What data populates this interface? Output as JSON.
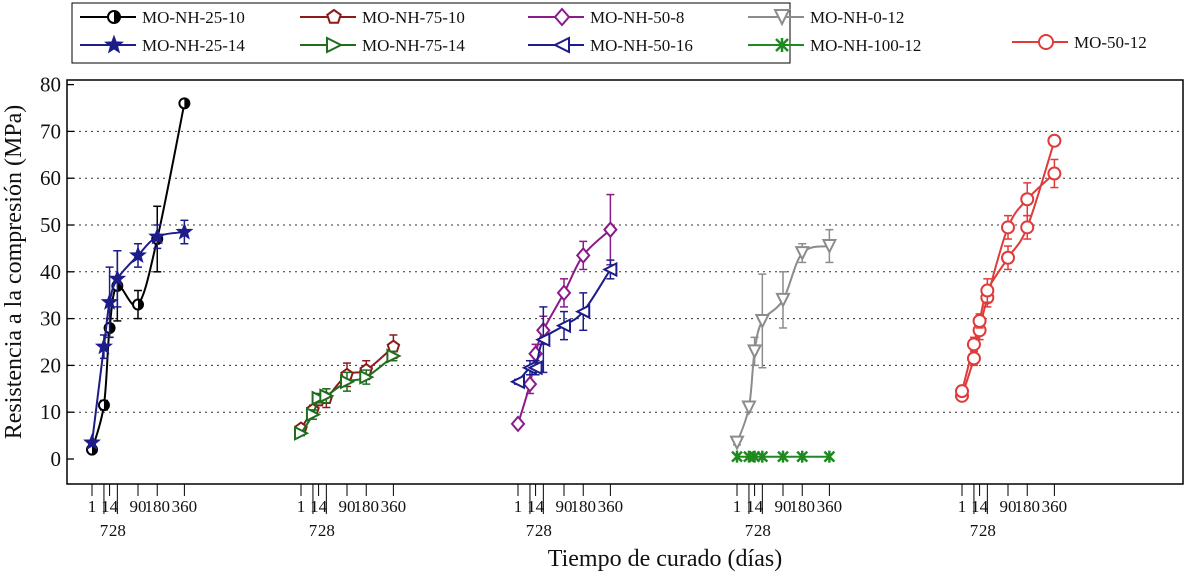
{
  "chart_data": {
    "type": "line",
    "xlabel": "Tiempo de curado (días)",
    "ylabel": "Resistencia a la compresión (MPa)",
    "ylim": [
      0,
      80
    ],
    "yticks": [
      0,
      10,
      20,
      30,
      40,
      50,
      60,
      70,
      80
    ],
    "grid": "horizontal dotted",
    "legend_position": "top",
    "x_tick_labels_upper": [
      "1",
      "14",
      "90",
      "180",
      "360"
    ],
    "x_tick_labels_lower": [
      "7",
      "28"
    ],
    "error_bars": true,
    "groups": [
      {
        "series": [
          {
            "name": "MO-NH-25-10",
            "color": "#000000",
            "marker": "circle-half",
            "x": [
              1,
              7,
              14,
              28,
              90,
              180,
              360
            ],
            "y": [
              2,
              11.5,
              28,
              37,
              33,
              47,
              76
            ],
            "err": [
              0.5,
              1,
              2,
              7.5,
              3,
              7,
              0.5
            ]
          },
          {
            "name": "MO-NH-25-14",
            "color": "#1c1c8a",
            "marker": "star",
            "x": [
              1,
              7,
              14,
              28,
              90,
              180,
              360
            ],
            "y": [
              3.5,
              24,
              33.5,
              38.5,
              43.5,
              47.5,
              48.5
            ],
            "err": [
              0.5,
              2.5,
              7.5,
              6,
              2.5,
              2.5,
              2.5
            ]
          }
        ]
      },
      {
        "series": [
          {
            "name": "MO-NH-75-10",
            "color": "#8b1a1a",
            "marker": "pentagon",
            "x": [
              1,
              7,
              14,
              28,
              90,
              180,
              360
            ],
            "y": [
              6.5,
              10.5,
              12.5,
              13,
              18,
              19,
              24
            ],
            "err": [
              0.5,
              1,
              1,
              2,
              2.5,
              2,
              2.5
            ]
          },
          {
            "name": "MO-NH-75-14",
            "color": "#1e6e1e",
            "marker": "triangle-right",
            "x": [
              1,
              7,
              14,
              28,
              90,
              180,
              360
            ],
            "y": [
              5.5,
              9.5,
              13,
              13.5,
              16.5,
              17.5,
              22
            ],
            "err": [
              0.5,
              1,
              1,
              1.5,
              2,
              1.5,
              1
            ]
          }
        ]
      },
      {
        "series": [
          {
            "name": "MO-NH-50-8",
            "color": "#8b1a8b",
            "marker": "diamond",
            "x": [
              1,
              7,
              14,
              28,
              90,
              180,
              360
            ],
            "y": [
              7.5,
              16,
              22.5,
              27.5,
              35.5,
              43.5,
              49
            ],
            "err": [
              0.5,
              2,
              2,
              3,
              3,
              3,
              7.5
            ]
          },
          {
            "name": "MO-NH-50-16",
            "color": "#1c1c8a",
            "marker": "triangle-left",
            "x": [
              1,
              7,
              14,
              28,
              90,
              180,
              360
            ],
            "y": [
              16.5,
              19.5,
              19.5,
              25.5,
              28.5,
              31.5,
              40.5
            ],
            "err": [
              0.5,
              1.5,
              1.5,
              7,
              3,
              4,
              2
            ]
          }
        ]
      },
      {
        "series": [
          {
            "name": "MO-NH-0-12",
            "color": "#8c8c8c",
            "marker": "triangle-down",
            "x": [
              1,
              7,
              14,
              28,
              90,
              180,
              360
            ],
            "y": [
              3.5,
              11,
              23,
              29.5,
              34,
              44,
              45.5
            ],
            "err": [
              0.5,
              1,
              3,
              10,
              6,
              2,
              3.5
            ]
          },
          {
            "name": "MO-NH-100-12",
            "color": "#1f8a1f",
            "marker": "x-star",
            "x": [
              1,
              7,
              14,
              28,
              90,
              180,
              360
            ],
            "y": [
              0.5,
              0.5,
              0.5,
              0.5,
              0.5,
              0.5,
              0.5
            ],
            "err": [
              0,
              0,
              0,
              0,
              0,
              0,
              0
            ]
          }
        ]
      },
      {
        "series": [
          {
            "name": "MO-50-12",
            "color": "#e03b3b",
            "marker": "circle",
            "x": [
              1,
              1,
              7,
              7,
              14,
              14,
              28,
              28,
              90,
              90,
              180,
              180,
              360,
              360
            ],
            "y": [
              13.5,
              14.5,
              21.5,
              24.5,
              27.5,
              29.5,
              34.5,
              36,
              43,
              49.5,
              49.5,
              55.5,
              61,
              68
            ],
            "err": [
              1,
              1,
              1.5,
              1.5,
              2,
              1.5,
              2,
              2.5,
              2.5,
              2.5,
              2.5,
              3.5,
              3,
              1
            ],
            "lines": [
              {
                "points": [
                  [
                    1,
                    13.5
                  ],
                  [
                    7,
                    21.5
                  ],
                  [
                    14,
                    27.5
                  ],
                  [
                    28,
                    34.5
                  ],
                  [
                    90,
                    49.5
                  ],
                  [
                    180,
                    55.5
                  ],
                  [
                    360,
                    61
                  ]
                ]
              },
              {
                "points": [
                  [
                    1,
                    14.5
                  ],
                  [
                    7,
                    24.5
                  ],
                  [
                    14,
                    29.5
                  ],
                  [
                    28,
                    36
                  ],
                  [
                    90,
                    43
                  ],
                  [
                    180,
                    49.5
                  ],
                  [
                    360,
                    68
                  ]
                ]
              }
            ]
          }
        ]
      }
    ]
  }
}
